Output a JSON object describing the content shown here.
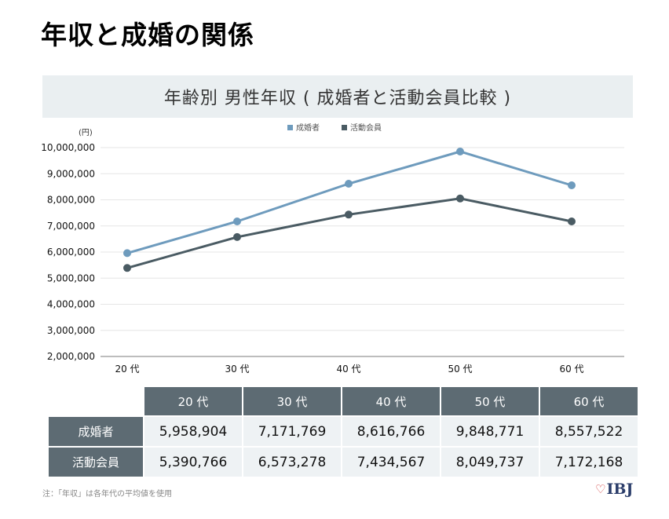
{
  "page_title": "年収と成婚の関係",
  "chart_data": {
    "type": "line",
    "title": "年齢別 男性年収 ( 成婚者と活動会員比較 )",
    "unit": "(円)",
    "categories": [
      "20 代",
      "30 代",
      "40 代",
      "50 代",
      "60 代"
    ],
    "series": [
      {
        "name": "成婚者",
        "color": "#6e9bbd",
        "values": [
          5958904,
          7171769,
          8616766,
          9848771,
          8557522
        ]
      },
      {
        "name": "活動会員",
        "color": "#4a5b63",
        "values": [
          5390766,
          6573278,
          7434567,
          8049737,
          7172168
        ]
      }
    ],
    "ylim": [
      2000000,
      10000000
    ],
    "yticks": [
      "2,000,000",
      "3,000,000",
      "4,000,000",
      "5,000,000",
      "6,000,000",
      "7,000,000",
      "8,000,000",
      "9,000,000",
      "10,000,000"
    ],
    "grid": true,
    "legend_position": "top"
  },
  "table": {
    "headers": [
      "20 代",
      "30 代",
      "40 代",
      "50 代",
      "60 代"
    ],
    "rows": [
      {
        "label": "成婚者",
        "values": [
          "5,958,904",
          "7,171,769",
          "8,616,766",
          "9,848,771",
          "8,557,522"
        ]
      },
      {
        "label": "活動会員",
        "values": [
          "5,390,766",
          "6,573,278",
          "7,434,567",
          "8,049,737",
          "7,172,168"
        ]
      }
    ]
  },
  "footnote": "注：「年収」は各年代の平均値を使用",
  "logo": {
    "heart": "♡",
    "text": "IBJ"
  }
}
